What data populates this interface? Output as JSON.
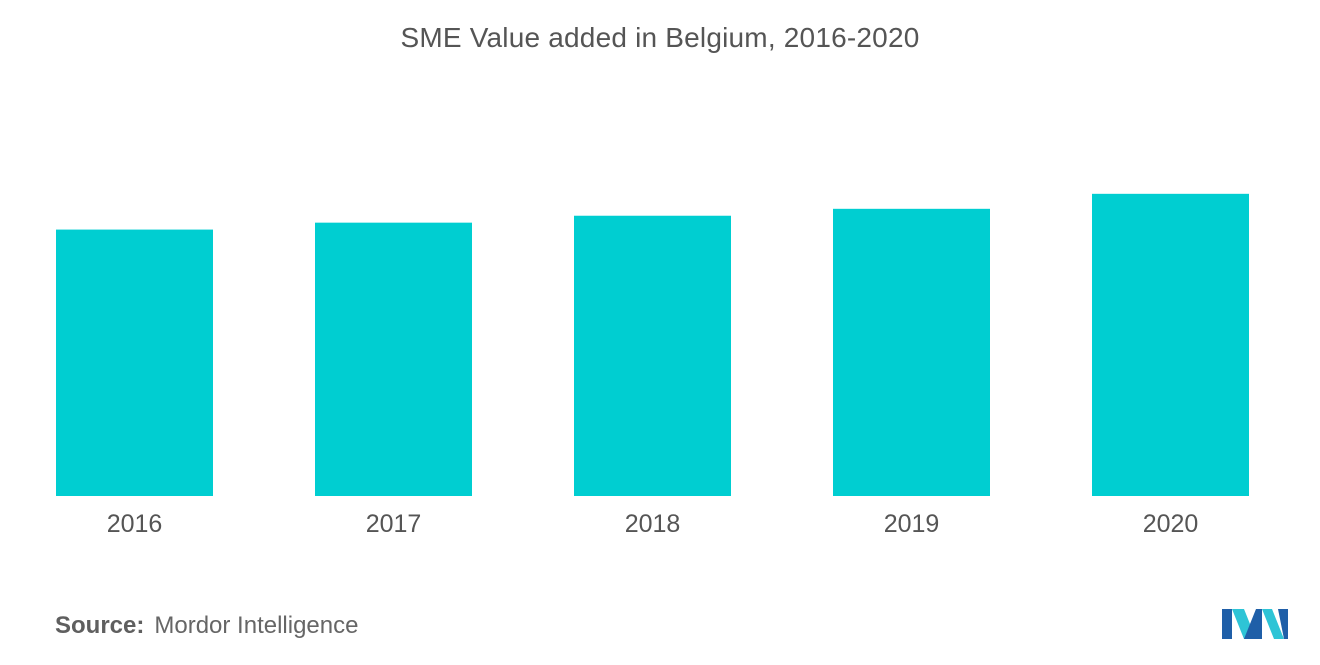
{
  "title": "SME Value added in Belgium, 2016-2020",
  "source": {
    "label": "Source:",
    "text": "Mordor Intelligence"
  },
  "logo": {
    "icon": "mordor-intelligence-logo-icon",
    "colors": [
      "#1f5fa8",
      "#2ec4d6"
    ]
  },
  "chart_data": {
    "type": "bar",
    "categories": [
      "2016",
      "2017",
      "2018",
      "2019",
      "2020"
    ],
    "values": [
      231,
      237,
      243,
      249,
      262
    ],
    "ylim": [
      0,
      300
    ],
    "grid": false,
    "legend": "none",
    "bar_color": "#00ced1"
  }
}
